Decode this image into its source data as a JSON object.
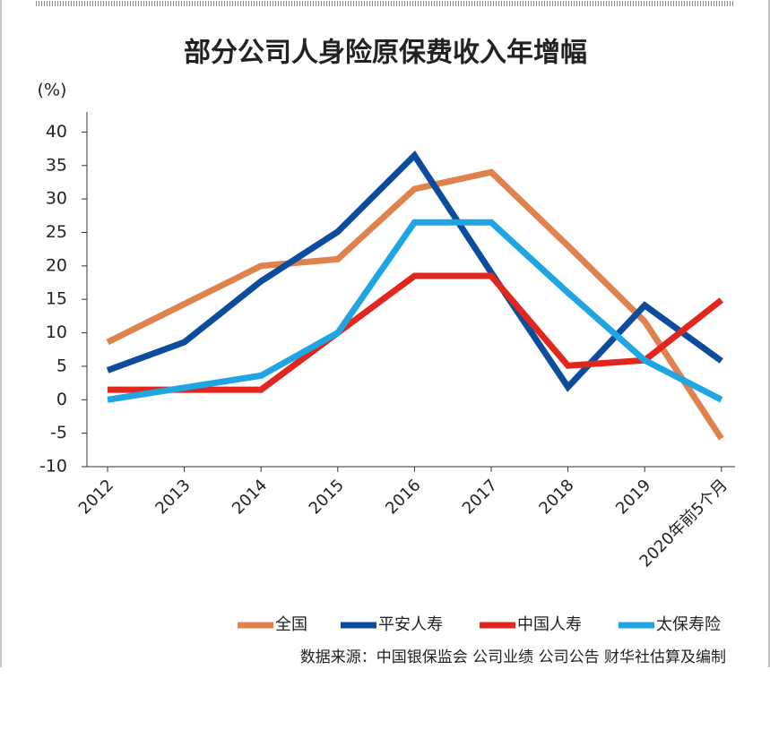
{
  "chart_data": {
    "type": "line",
    "title": "部分公司人身险原保费收入年增幅",
    "y_label": "(%)",
    "categories": [
      "2012",
      "2013",
      "2014",
      "2015",
      "2016",
      "2017",
      "2018",
      "2019",
      "2020年前5个月"
    ],
    "series": [
      {
        "name": "全国",
        "color": "#e0824e",
        "values": [
          8.6,
          14.3,
          20.0,
          21.0,
          31.5,
          34.0,
          23.0,
          11.7,
          -5.8
        ]
      },
      {
        "name": "平安人寿",
        "color": "#0b4c9c",
        "values": [
          4.4,
          8.6,
          17.7,
          25.1,
          36.5,
          19.0,
          1.9,
          14.1,
          5.8
        ]
      },
      {
        "name": "中国人寿",
        "color": "#e2261d",
        "values": [
          1.5,
          1.5,
          1.5,
          10.0,
          18.5,
          18.5,
          5.1,
          5.9,
          14.9
        ]
      },
      {
        "name": "太保寿险",
        "color": "#1fa6e2",
        "values": [
          0,
          1.8,
          3.6,
          10.0,
          26.5,
          26.5,
          16.0,
          5.9,
          0
        ]
      }
    ],
    "ylim": [
      -10,
      43
    ],
    "yticks": [
      -10,
      -5,
      0,
      5,
      10,
      15,
      20,
      25,
      30,
      35,
      40
    ],
    "source": "数据来源：中国银保监会 公司业绩 公司公告 财华社估算及编制"
  }
}
